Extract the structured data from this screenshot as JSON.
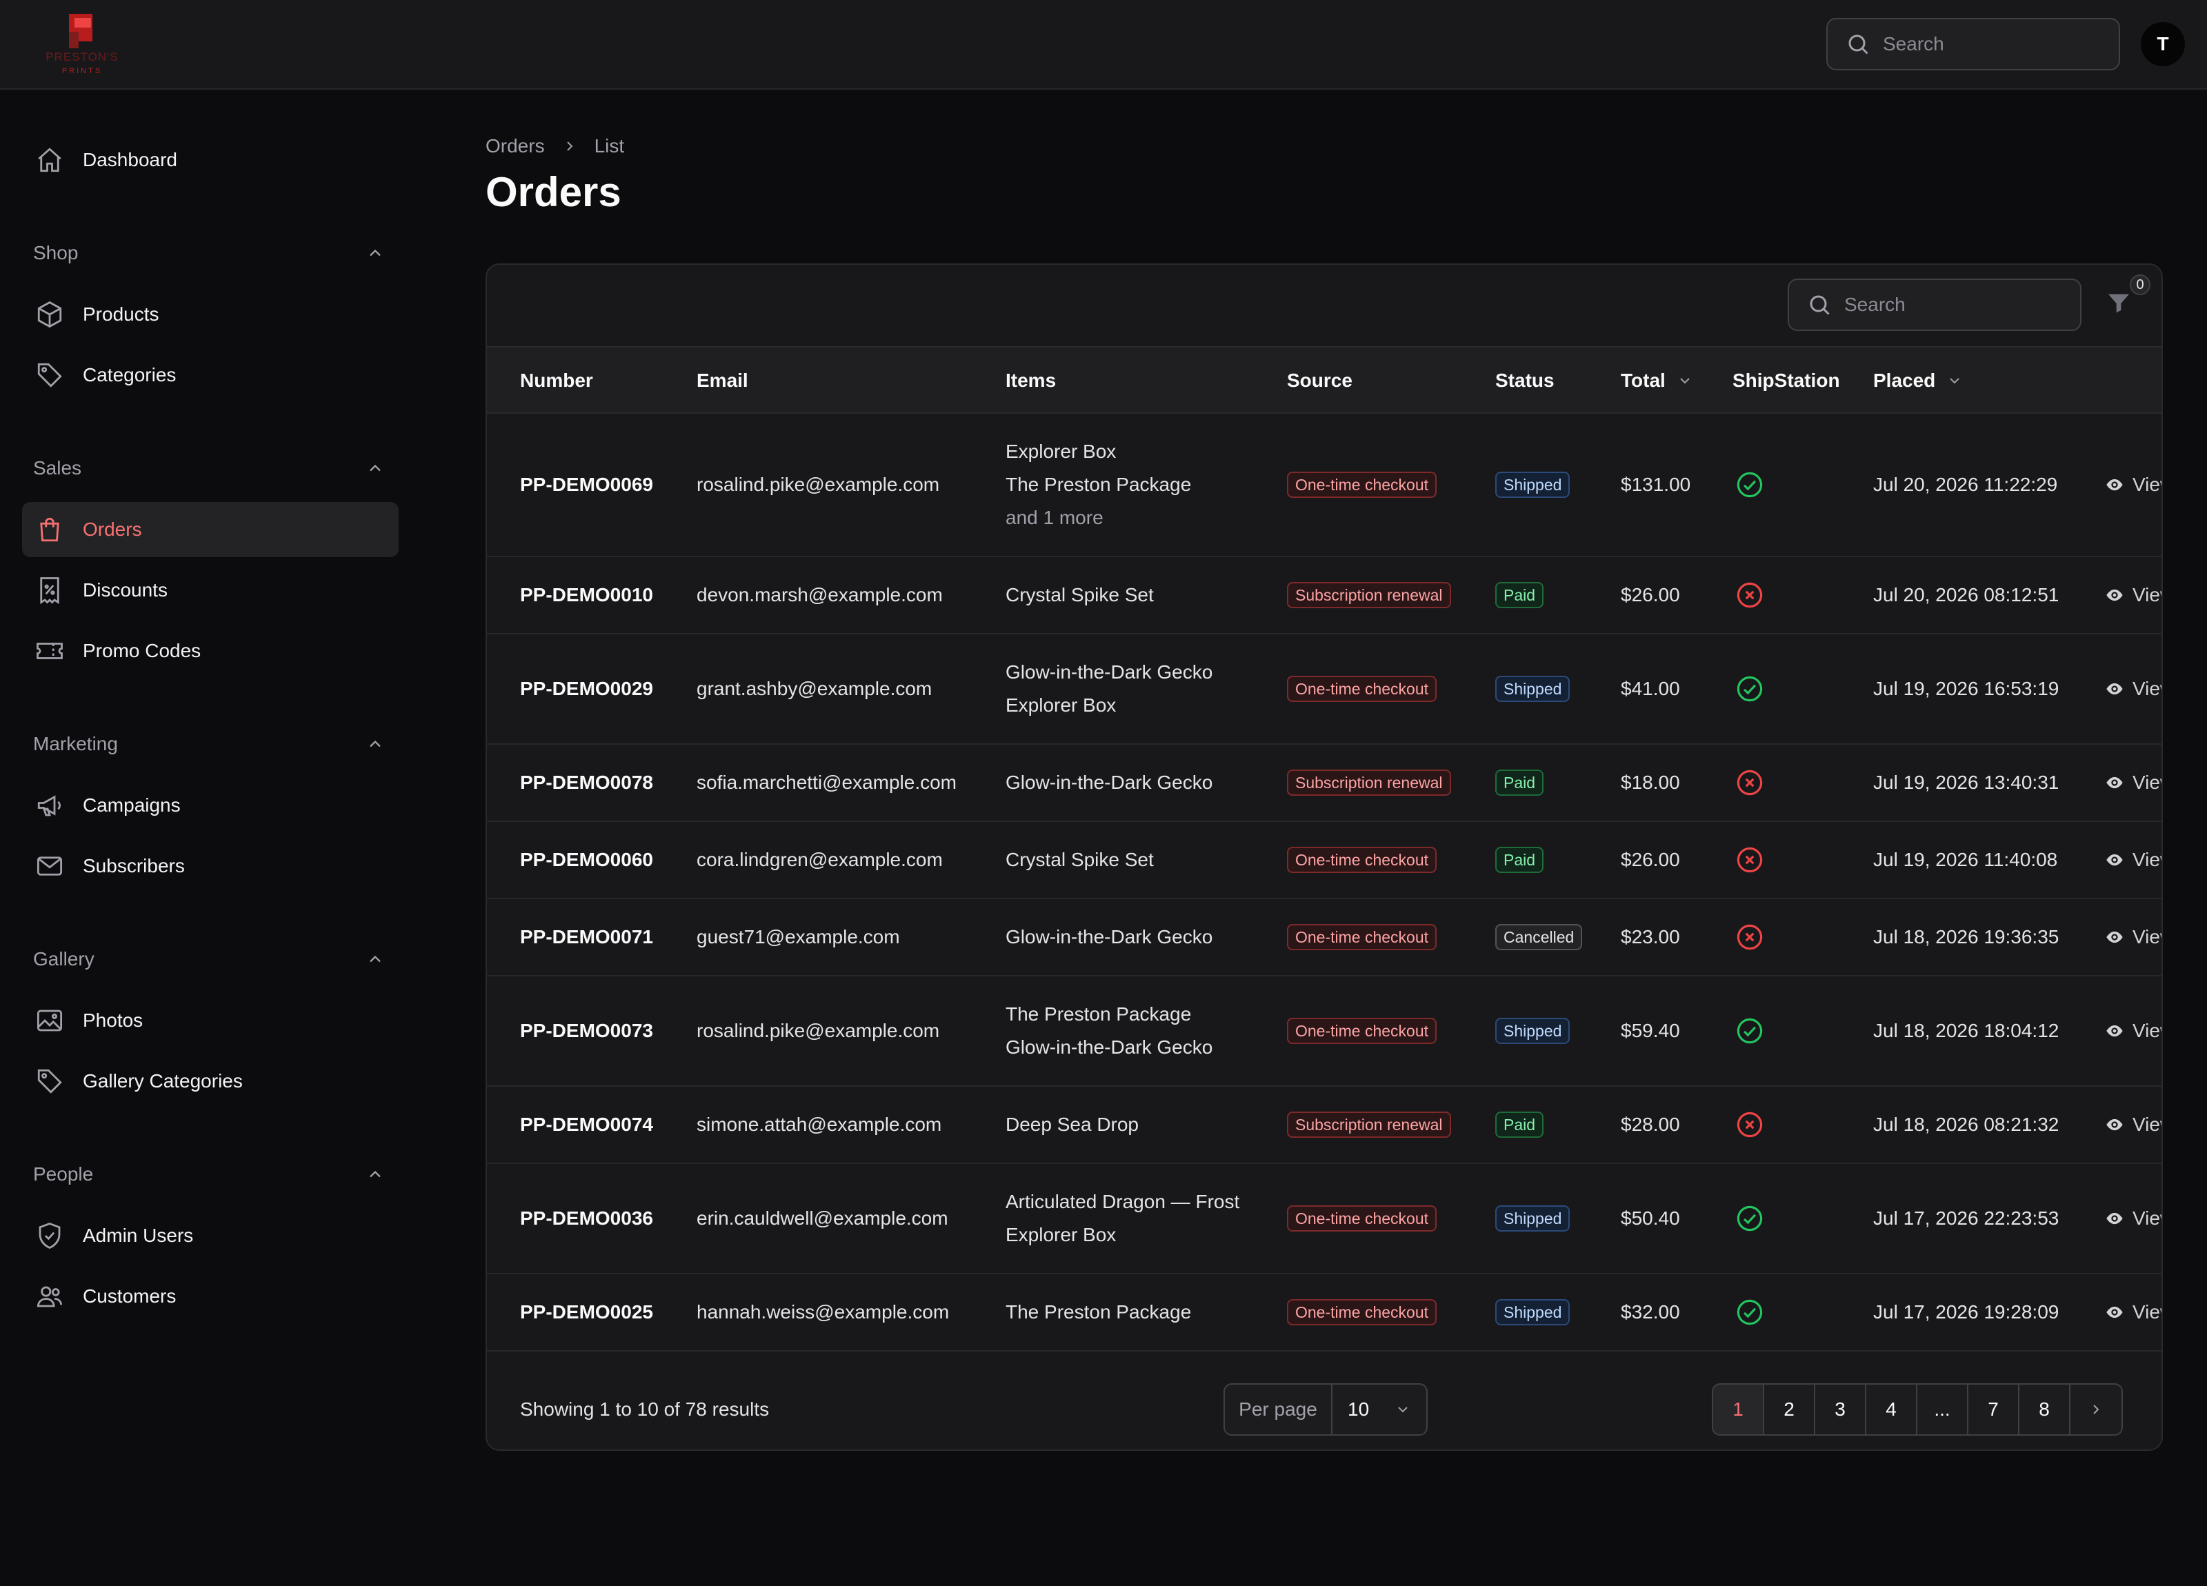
{
  "header": {
    "search_placeholder": "Search",
    "avatar_initial": "T",
    "logo_line1": "PRESTON'S",
    "logo_line2": "PRINTS"
  },
  "sidebar": {
    "dashboard": "Dashboard",
    "groups": {
      "shop": {
        "label": "Shop",
        "items": [
          "Products",
          "Categories"
        ]
      },
      "sales": {
        "label": "Sales",
        "items": [
          "Orders",
          "Discounts",
          "Promo Codes"
        ]
      },
      "marketing": {
        "label": "Marketing",
        "items": [
          "Campaigns",
          "Subscribers"
        ]
      },
      "gallery": {
        "label": "Gallery",
        "items": [
          "Photos",
          "Gallery Categories"
        ]
      },
      "people": {
        "label": "People",
        "items": [
          "Admin Users",
          "Customers"
        ]
      }
    },
    "active_item": "Orders"
  },
  "breadcrumb": {
    "parent": "Orders",
    "current": "List"
  },
  "page_title": "Orders",
  "table": {
    "search_placeholder": "Search",
    "filter_count": "0",
    "columns": {
      "number": "Number",
      "email": "Email",
      "items": "Items",
      "source": "Source",
      "status": "Status",
      "total": "Total",
      "shipstation": "ShipStation",
      "placed": "Placed"
    },
    "view_label": "View",
    "rows": [
      {
        "number": "PP-DEMO0069",
        "email": "rosalind.pike@example.com",
        "items": [
          "Explorer Box",
          "The Preston Package"
        ],
        "more": "and 1 more",
        "source": "One-time checkout",
        "status": "Shipped",
        "total": "$131.00",
        "shipstation": "synced",
        "placed": "Jul 20, 2026 11:22:29"
      },
      {
        "number": "PP-DEMO0010",
        "email": "devon.marsh@example.com",
        "items": [
          "Crystal Spike Set"
        ],
        "more": "",
        "source": "Subscription renewal",
        "status": "Paid",
        "total": "$26.00",
        "shipstation": "not-synced",
        "placed": "Jul 20, 2026 08:12:51"
      },
      {
        "number": "PP-DEMO0029",
        "email": "grant.ashby@example.com",
        "items": [
          "Glow-in-the-Dark Gecko",
          "Explorer Box"
        ],
        "more": "",
        "source": "One-time checkout",
        "status": "Shipped",
        "total": "$41.00",
        "shipstation": "synced",
        "placed": "Jul 19, 2026 16:53:19"
      },
      {
        "number": "PP-DEMO0078",
        "email": "sofia.marchetti@example.com",
        "items": [
          "Glow-in-the-Dark Gecko"
        ],
        "more": "",
        "source": "Subscription renewal",
        "status": "Paid",
        "total": "$18.00",
        "shipstation": "not-synced",
        "placed": "Jul 19, 2026 13:40:31"
      },
      {
        "number": "PP-DEMO0060",
        "email": "cora.lindgren@example.com",
        "items": [
          "Crystal Spike Set"
        ],
        "more": "",
        "source": "One-time checkout",
        "status": "Paid",
        "total": "$26.00",
        "shipstation": "not-synced",
        "placed": "Jul 19, 2026 11:40:08"
      },
      {
        "number": "PP-DEMO0071",
        "email": "guest71@example.com",
        "items": [
          "Glow-in-the-Dark Gecko"
        ],
        "more": "",
        "source": "One-time checkout",
        "status": "Cancelled",
        "total": "$23.00",
        "shipstation": "not-synced",
        "placed": "Jul 18, 2026 19:36:35"
      },
      {
        "number": "PP-DEMO0073",
        "email": "rosalind.pike@example.com",
        "items": [
          "The Preston Package",
          "Glow-in-the-Dark Gecko"
        ],
        "more": "",
        "source": "One-time checkout",
        "status": "Shipped",
        "total": "$59.40",
        "shipstation": "synced",
        "placed": "Jul 18, 2026 18:04:12"
      },
      {
        "number": "PP-DEMO0074",
        "email": "simone.attah@example.com",
        "items": [
          "Deep Sea Drop"
        ],
        "more": "",
        "source": "Subscription renewal",
        "status": "Paid",
        "total": "$28.00",
        "shipstation": "not-synced",
        "placed": "Jul 18, 2026 08:21:32"
      },
      {
        "number": "PP-DEMO0036",
        "email": "erin.cauldwell@example.com",
        "items": [
          "Articulated Dragon — Frost",
          "Explorer Box"
        ],
        "more": "",
        "source": "One-time checkout",
        "status": "Shipped",
        "total": "$50.40",
        "shipstation": "synced",
        "placed": "Jul 17, 2026 22:23:53"
      },
      {
        "number": "PP-DEMO0025",
        "email": "hannah.weiss@example.com",
        "items": [
          "The Preston Package"
        ],
        "more": "",
        "source": "One-time checkout",
        "status": "Shipped",
        "total": "$32.00",
        "shipstation": "synced",
        "placed": "Jul 17, 2026 19:28:09"
      }
    ]
  },
  "footer": {
    "showing": "Showing 1 to 10 of 78 results",
    "per_page_label": "Per page",
    "per_page_value": "10",
    "pages": [
      "1",
      "2",
      "3",
      "4",
      "...",
      "7",
      "8"
    ],
    "current_page": "1"
  },
  "colors": {
    "accent": "#f87171",
    "success": "#22c55e",
    "danger": "#ef4444"
  }
}
